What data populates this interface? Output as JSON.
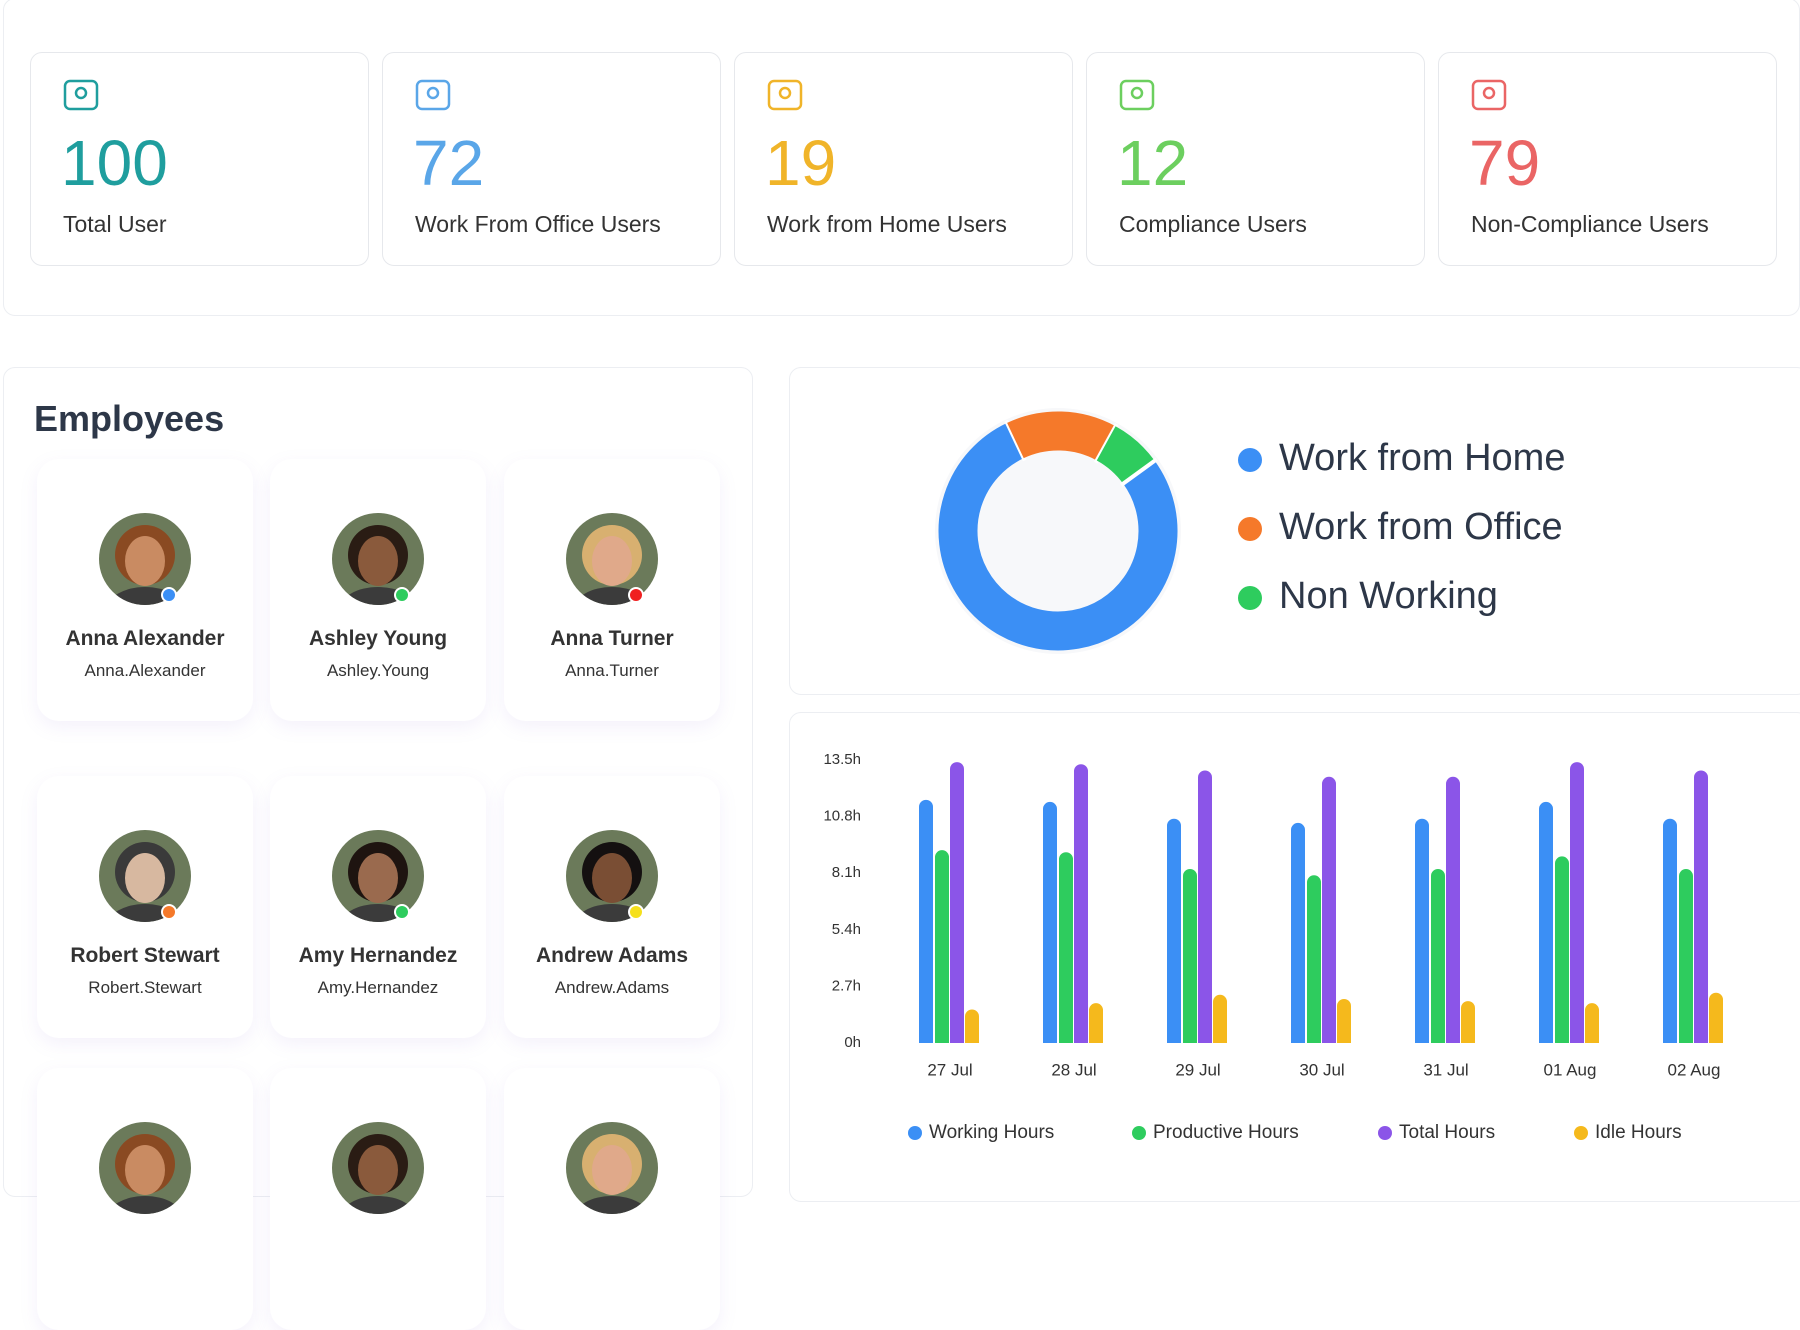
{
  "stats": [
    {
      "value": 100,
      "label": "Total User",
      "color": "#1f9e9e"
    },
    {
      "value": 72,
      "label": "Work From Office Users",
      "color": "#5aa6e8"
    },
    {
      "value": 19,
      "label": "Work from Home Users",
      "color": "#f0b429"
    },
    {
      "value": 12,
      "label": "Compliance Users",
      "color": "#6ccf5f"
    },
    {
      "value": 79,
      "label": "Non-Compliance Users",
      "color": "#ea6565"
    }
  ],
  "employees": {
    "title": "Employees",
    "items": [
      {
        "name": "Anna Alexander",
        "username": "Anna.Alexander",
        "status_color": "#3b8ff5"
      },
      {
        "name": "Ashley Young",
        "username": "Ashley.Young",
        "status_color": "#2ecc5e"
      },
      {
        "name": "Anna Turner",
        "username": "Anna.Turner",
        "status_color": "#f02020"
      },
      {
        "name": "Robert Stewart",
        "username": "Robert.Stewart",
        "status_color": "#f5792a"
      },
      {
        "name": "Amy Hernandez",
        "username": "Amy.Hernandez",
        "status_color": "#2ecc5e"
      },
      {
        "name": "Andrew Adams",
        "username": "Andrew.Adams",
        "status_color": "#f5e01c"
      }
    ]
  },
  "chart_data": [
    {
      "type": "donut",
      "categories": [
        "Work from Home",
        "Work from Office",
        "Non Working"
      ],
      "values": [
        78,
        15,
        7
      ],
      "colors": [
        "#3b8ff5",
        "#f5792a",
        "#2ecc5e"
      ]
    },
    {
      "type": "bar",
      "categories": [
        "27 Jul",
        "28 Jul",
        "29 Jul",
        "30 Jul",
        "31 Jul",
        "01 Aug",
        "02 Aug"
      ],
      "series": [
        {
          "name": "Working Hours",
          "color": "#3b8ff5",
          "values": [
            11.6,
            11.5,
            10.7,
            10.5,
            10.7,
            11.5,
            10.7
          ]
        },
        {
          "name": "Productive Hours",
          "color": "#2ecc5e",
          "values": [
            9.2,
            9.1,
            8.3,
            8.0,
            8.3,
            8.9,
            8.3
          ]
        },
        {
          "name": "Total Hours",
          "color": "#8b55e8",
          "values": [
            13.4,
            13.3,
            13.0,
            12.7,
            12.7,
            13.4,
            13.0
          ]
        },
        {
          "name": "Idle Hours",
          "color": "#f5b91c",
          "values": [
            1.6,
            1.9,
            2.3,
            2.1,
            2.0,
            1.9,
            2.4
          ]
        }
      ],
      "ylim": [
        0,
        13.5
      ],
      "yticks": [
        {
          "value": 0,
          "label": "0h"
        },
        {
          "value": 2.7,
          "label": "2.7h"
        },
        {
          "value": 5.4,
          "label": "5.4h"
        },
        {
          "value": 8.1,
          "label": "8.1h"
        },
        {
          "value": 10.8,
          "label": "10.8h"
        },
        {
          "value": 13.5,
          "label": "13.5h"
        }
      ]
    }
  ]
}
